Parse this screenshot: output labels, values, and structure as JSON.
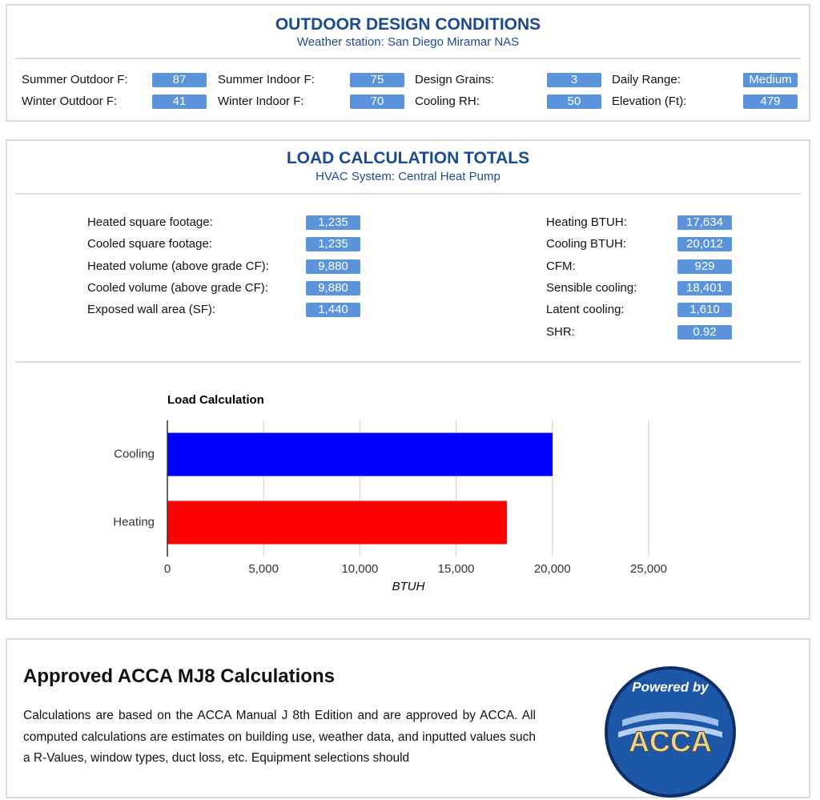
{
  "outdoor": {
    "title": "OUTDOOR DESIGN CONDITIONS",
    "subtitle": "Weather station: San Diego Miramar NAS",
    "fields": [
      {
        "label": "Summer Outdoor F:",
        "value": "87"
      },
      {
        "label": "Summer Indoor F:",
        "value": "75"
      },
      {
        "label": "Design Grains:",
        "value": "3"
      },
      {
        "label": "Daily Range:",
        "value": "Medium"
      },
      {
        "label": "Winter Outdoor F:",
        "value": "41"
      },
      {
        "label": "Winter Indoor F:",
        "value": "70"
      },
      {
        "label": "Cooling RH:",
        "value": "50"
      },
      {
        "label": "Elevation (Ft):",
        "value": "479"
      }
    ]
  },
  "totals": {
    "title": "LOAD CALCULATION TOTALS",
    "subtitle": "HVAC System: Central Heat Pump",
    "left": [
      {
        "label": "Heated square footage:",
        "value": "1,235"
      },
      {
        "label": "Cooled square footage:",
        "value": "1,235"
      },
      {
        "label": "Heated volume (above grade CF):",
        "value": "9,880"
      },
      {
        "label": "Cooled volume (above grade CF):",
        "value": "9,880"
      },
      {
        "label": "Exposed wall area (SF):",
        "value": "1,440"
      }
    ],
    "right": [
      {
        "label": "Heating BTUH:",
        "value": "17,634"
      },
      {
        "label": "Cooling BTUH:",
        "value": "20,012"
      },
      {
        "label": "CFM:",
        "value": "929"
      },
      {
        "label": "Sensible cooling:",
        "value": "18,401"
      },
      {
        "label": "Latent cooling:",
        "value": "1,610"
      },
      {
        "label": "SHR:",
        "value": "0.92"
      }
    ]
  },
  "chart_data": {
    "type": "hbar",
    "title": "Load Calculation",
    "x_label": "BTUH",
    "categories": [
      "Cooling",
      "Heating"
    ],
    "values": [
      20012,
      17634
    ],
    "colors": [
      "#0000ff",
      "#ff0000"
    ],
    "xlim": [
      0,
      25000
    ],
    "xticks": [
      0,
      {
        "value": 5000,
        "label": "5,000"
      },
      {
        "value": 10000,
        "label": "10,000"
      },
      {
        "value": 15000,
        "label": "15,000"
      },
      {
        "value": 20000,
        "label": "20,000"
      },
      {
        "value": 25000,
        "label": "25,000"
      }
    ],
    "grid": true
  },
  "approval": {
    "heading": "Approved ACCA MJ8 Calculations",
    "text": "Calculations are based on the ACCA Manual J 8th Edition and are approved by ACCA. All computed calculations are estimates on building use, weather data, and inputted values such a R-Values, window types, duct loss, etc. Equipment selections should",
    "logo_top": "Powered by",
    "logo_main": "ACCA"
  }
}
